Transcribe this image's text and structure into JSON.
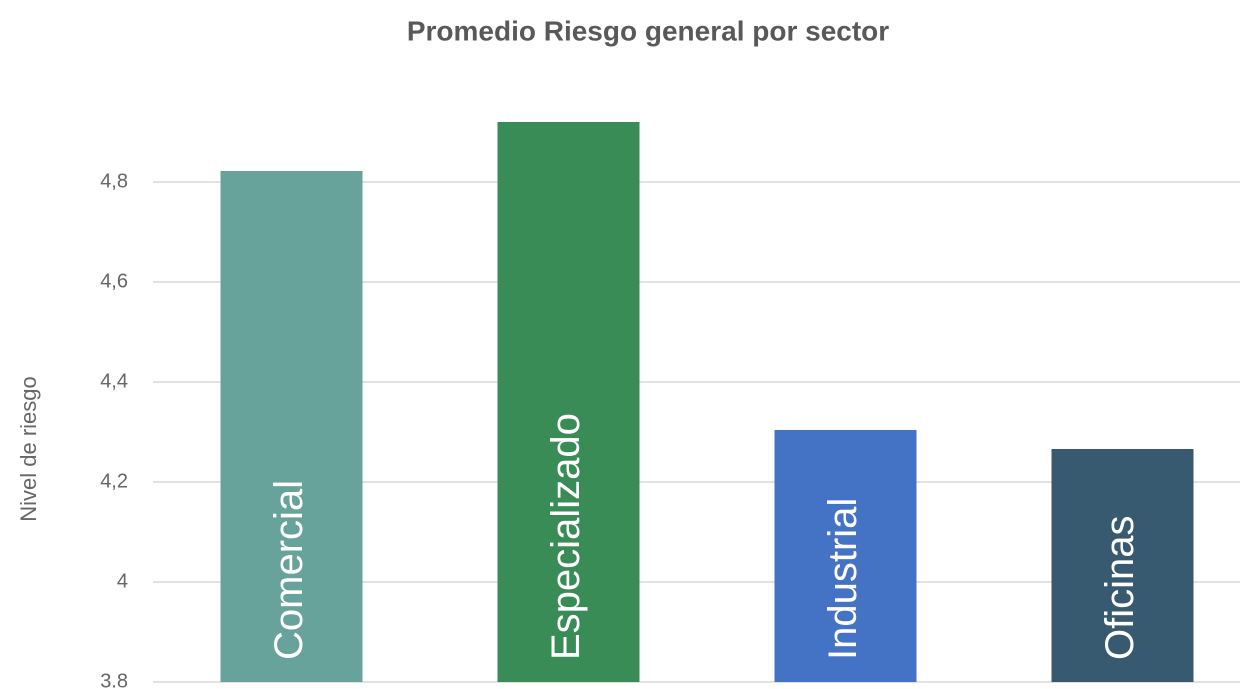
{
  "chart_data": {
    "type": "bar",
    "title": "Promedio Riesgo general por sector",
    "y_label": "Nivel de riesgo",
    "categories": [
      "Comercial",
      "Especializado",
      "Industrial",
      "Oficinas"
    ],
    "values": [
      4.822,
      4.92,
      4.304,
      4.266
    ],
    "colors": [
      "#67a39b",
      "#3a8c57",
      "#4472c4",
      "#375a70"
    ],
    "ylim": [
      3.8,
      5.0
    ],
    "yticks": [
      3.8,
      4,
      {
        "value": 4.2,
        "label": "4,2"
      },
      {
        "value": 4.4,
        "label": "4,4"
      },
      {
        "value": 4.6,
        "label": "4,6"
      },
      {
        "value": 4.8,
        "label": "4,8"
      }
    ],
    "grid": true
  }
}
